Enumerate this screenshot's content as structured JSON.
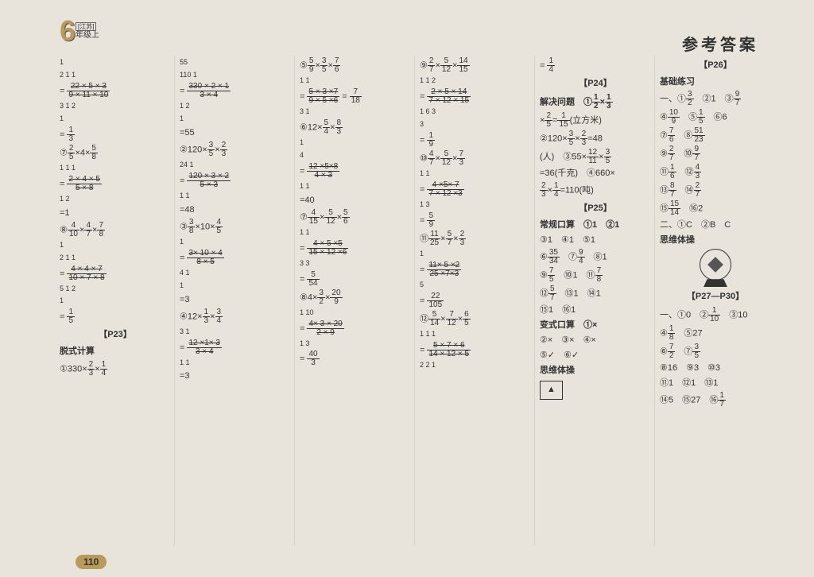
{
  "header": {
    "grade_num": "6",
    "province": "[江苏]",
    "grade_text": "年级上",
    "title": "参考答案",
    "page_num": "110"
  },
  "col1": {
    "calc1_top_small": "1",
    "calc1_l1": "2    1    1",
    "calc1_num": "22 × 5 × 3",
    "calc1_den": "9 × 11 × 10",
    "calc1_bot1": "3   1    2",
    "calc1_bot2": "1",
    "calc1_res": "= 1/3",
    "calc2_head": "⑦ 2/5 ×4× 5/8",
    "calc2_l1": "1   1   1",
    "calc2_num": "2 × 4 × 5",
    "calc2_den": "5 × 8",
    "calc2_bot": "1   2",
    "calc2_res": "=1",
    "calc3_head": "⑧ 4/10 × 4/7 × 7/8",
    "calc3_l0": "1",
    "calc3_l1": "2    1    1",
    "calc3_num": "4 × 4 × 7",
    "calc3_den": "10 × 7 × 8",
    "calc3_bot": "5    1    2",
    "calc3_bot2": "1",
    "calc3_res": "= 1/5",
    "p23_title": "【P23】",
    "p23_sub": "脱式计算",
    "p23_item1": "①330× 2/3 × 1/4"
  },
  "col2": {
    "l0": "55",
    "l1": "110 1",
    "num": "330 × 2 × 1",
    "den": "3 × 4",
    "bot": "1       2",
    "bot2": "1",
    "res": "=55",
    "c2_head": "②120× 3/5 × 2/3",
    "c2_l0": "24   1",
    "c2_num": "120 × 3 × 2",
    "c2_den": "5 × 3",
    "c2_bot": "1    1",
    "c2_res": "=48",
    "c3_head": "③ 3/8 ×10× 4/5",
    "c3_l0": "1",
    "c3_num": "3× 10 × 4",
    "c3_den": "8 × 5",
    "c3_bot": "4    1",
    "c3_bot2": "1",
    "c3_res": "=3",
    "c4_head": "④12× 1/3 × 3/4",
    "c4_l0": "3       1",
    "c4_num": "12 ×1× 3",
    "c4_den": "3 × 4",
    "c4_bot": "1   1",
    "c4_res": "=3"
  },
  "col3": {
    "c5_head": "⑤ 5/9 × 3/5 × 7/6",
    "c5_l0": "1   1",
    "c5_num": "5 × 3 ×7",
    "c5_den": "9 × 5 ×6",
    "c5_bot": "3   1",
    "c5_res": "= 7/18",
    "c6_head": "⑥12× 5/4 × 8/3",
    "c6_l0": "1",
    "c6_l1": "4",
    "c6_num": "12 ×5×8",
    "c6_den": "4 × 3",
    "c6_bot": "1   1",
    "c6_res": "=40",
    "c7_head": "⑦ 4/15 × 5/12 × 5/6",
    "c7_l0": "1   1",
    "c7_num": "4 × 5 ×5",
    "c7_den": "15 × 12 ×6",
    "c7_bot": "3   3",
    "c7_res": "= 5/54",
    "c8_head": "⑧4× 3/2 × 20/9",
    "c8_l0": "1   10",
    "c8_num": "4× 3 × 20",
    "c8_den": "2 × 9",
    "c8_bot": "1   3",
    "c8_res": "= 40/3"
  },
  "col4": {
    "c9_head": "⑨ 2/7 × 5/12 × 14/15",
    "c9_l0": "1   1    2",
    "c9_num": "2 × 5 × 14",
    "c9_den": "7 × 12 × 15",
    "c9_bot": "1   6    3",
    "c9_bot2": "3",
    "c9_res": "= 1/9",
    "c10_head": "⑩ 4/7 × 5/12 × 7/3",
    "c10_l0": "1        1",
    "c10_num": "4 ×5× 7",
    "c10_den": "7 × 12 ×3",
    "c10_bot": "1   3",
    "c10_res": "= 5/9",
    "c11_head": "⑪ 11/25 × 5/7 × 2/3",
    "c11_l0": "1",
    "c11_num": "11× 5 ×2",
    "c11_den": "25 ×7×3",
    "c11_bot": "5",
    "c11_res": "= 22/105",
    "c12_head": "⑫ 5/14 × 7/12 × 6/5",
    "c12_l0": "1   1    1",
    "c12_num": "5 × 7 × 6",
    "c12_den": "14 × 12 × 5",
    "c12_bot": "2   2   1"
  },
  "col5": {
    "res14": "= 1/4",
    "p24_title": "【P24】",
    "p24_sub": "解决问题",
    "p24_1": "① 1/2 × 1/3",
    "p24_1b": "× 2/5 = 1/15 (立方米)",
    "p24_2": "②120× 3/5 × 2/3 =48",
    "p24_2b": "(人)　③55× 12/11 × 3/5",
    "p24_3": "=36(千克)　④660×",
    "p24_3b": "2/3 × 1/4 =110(吨)",
    "p25_title": "【P25】",
    "p25_sub": "常规口算",
    "p25_row1": "①1　②1",
    "p25_row2": "③1　④1　⑤1",
    "p25_row3": "⑥ 35/34 　⑦ 9/4 　⑧1",
    "p25_row4": "⑨ 7/5 　⑩1　⑪ 7/8",
    "p25_row5": "⑫ 5/7 　⑬1　⑭1",
    "p25_row6": "⑮1　⑯1",
    "p25_sub2": "变式口算",
    "p25_v1": "①×",
    "p25_v2": "②×　③×　④×",
    "p25_v3": "⑤✓　⑥✓",
    "p25_think": "思维体操",
    "p25_tri": "▲"
  },
  "col6": {
    "p26_title": "【P26】",
    "p26_sub": "基础练习",
    "p26_r1": "一、① 3/2 　②1　③ 9/7",
    "p26_r2": "④ 10/9 　⑤ 1/5 　⑥6",
    "p26_r3": "⑦ 7/6 　⑧ 51/23",
    "p26_r4": "⑨ 2/7 　⑩ 9/7",
    "p26_r5": "⑪ 1/6 　⑫ 4/3",
    "p26_r6": "⑬ 8/7 　⑭ 2/7",
    "p26_r7": "⑮ 15/14 　⑯2",
    "p26_2": "二、①C　②B　C",
    "p26_think": "思维体操",
    "p27_title": "【P27—P30】",
    "p27_r1": "一、①0　② 1/10 　③10",
    "p27_r2": "④ 1/8 　⑤27",
    "p27_r3": "⑥ 7/2 　⑦ 3/5",
    "p27_r4": "⑧16　⑨3　⑩3",
    "p27_r5": "⑪1　⑫1　⑬1",
    "p27_r6": "⑭5　⑮27　⑯ 1/7"
  }
}
